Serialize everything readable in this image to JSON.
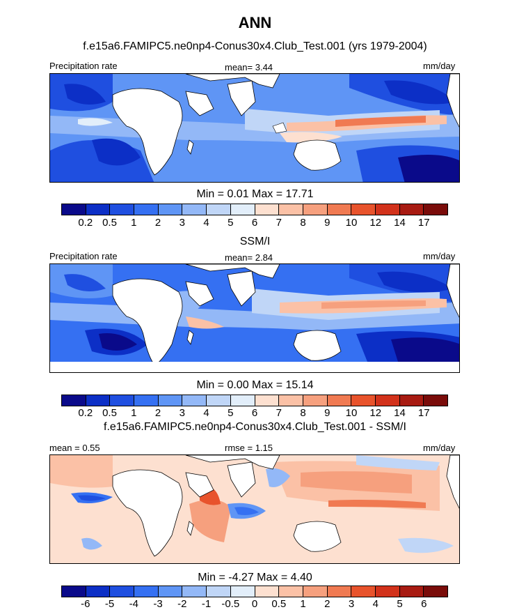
{
  "title": "ANN",
  "panels": [
    {
      "id": "model",
      "title": "f.e15a6.FAMIPC5.ne0np4-Conus30x4.Club_Test.001 (yrs 1979-2004)",
      "left_label": "Precipitation rate",
      "center_label": "mean=   3.44",
      "right_label": "mm/day",
      "minmax": "Min =    0.01 Max =  17.71",
      "scale": "seq",
      "mean": 3.44,
      "min": 0.01,
      "max": 17.71
    },
    {
      "id": "obs",
      "title": "SSM/I",
      "left_label": "Precipitation rate",
      "center_label": "mean=   2.84",
      "right_label": "mm/day",
      "minmax": "Min =    0.00 Max =  15.14",
      "scale": "seq",
      "mean": 2.84,
      "min": 0.0,
      "max": 15.14
    },
    {
      "id": "diff",
      "title": "f.e15a6.FAMIPC5.ne0np4-Conus30x4.Club_Test.001 - SSM/I",
      "left_label": "mean =   0.55",
      "center_label": "rmse =   1.15",
      "right_label": "mm/day",
      "minmax": "Min =   -4.27 Max =   4.40",
      "scale": "div",
      "mean": 0.55,
      "rmse": 1.15,
      "min": -4.27,
      "max": 4.4
    }
  ],
  "colorbars": {
    "seq": {
      "colors": [
        "#0a0a8a",
        "#0c2fc6",
        "#1f4fe0",
        "#3570f2",
        "#5f95f5",
        "#93b8f7",
        "#c0d6f7",
        "#e2eefa",
        "#fde0d0",
        "#fbc1a6",
        "#f6a07e",
        "#f07a52",
        "#e8532c",
        "#d2321b",
        "#a81b12",
        "#7a0c0a"
      ],
      "labels": [
        "0.2",
        "0.5",
        "1",
        "2",
        "3",
        "4",
        "5",
        "6",
        "7",
        "8",
        "9",
        "10",
        "12",
        "14",
        "17"
      ]
    },
    "div": {
      "colors": [
        "#0a0a8a",
        "#0c2fc6",
        "#1f4fe0",
        "#3570f2",
        "#5f95f5",
        "#93b8f7",
        "#c0d6f7",
        "#e2eefa",
        "#fde0d0",
        "#fbc1a6",
        "#f6a07e",
        "#f07a52",
        "#e8532c",
        "#d2321b",
        "#a81b12",
        "#7a0c0a"
      ],
      "labels": [
        "-6",
        "-5",
        "-4",
        "-3",
        "-2",
        "-1",
        "-0.5",
        "0",
        "0.5",
        "1",
        "2",
        "3",
        "4",
        "5",
        "6"
      ]
    }
  },
  "chart_data": {
    "type": "heatmap",
    "title": "ANN",
    "units": "mm/day",
    "variable": "Precipitation rate",
    "panels": [
      {
        "name": "f.e15a6.FAMIPC5.ne0np4-Conus30x4.Club_Test.001 (yrs 1979-2004)",
        "mean": 3.44,
        "min": 0.01,
        "max": 17.71
      },
      {
        "name": "SSM/I",
        "mean": 2.84,
        "min": 0.0,
        "max": 15.14
      },
      {
        "name": "f.e15a6.FAMIPC5.ne0np4-Conus30x4.Club_Test.001 - SSM/I",
        "mean": 0.55,
        "rmse": 1.15,
        "min": -4.27,
        "max": 4.4
      }
    ],
    "contour_levels_abs": [
      0.2,
      0.5,
      1,
      2,
      3,
      4,
      5,
      6,
      7,
      8,
      9,
      10,
      12,
      14,
      17
    ],
    "contour_levels_diff": [
      -6,
      -5,
      -4,
      -3,
      -2,
      -1,
      -0.5,
      0,
      0.5,
      1,
      2,
      3,
      4,
      5,
      6
    ]
  }
}
